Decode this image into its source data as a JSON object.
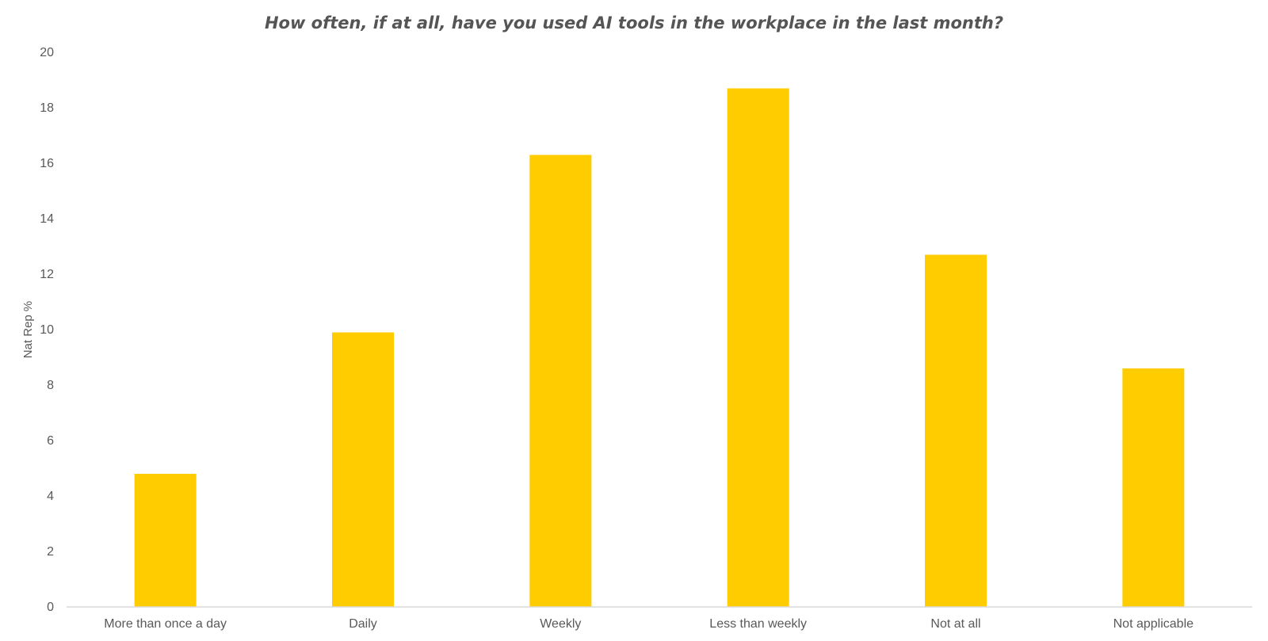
{
  "chart_data": {
    "type": "bar",
    "title": "How often, if at all, have you used AI tools in the workplace in the last month?",
    "xlabel": "",
    "ylabel": "Nat Rep %",
    "categories": [
      "More than once a day",
      "Daily",
      "Weekly",
      "Less than weekly",
      "Not at all",
      "Not applicable"
    ],
    "values": [
      4.8,
      9.9,
      16.3,
      18.7,
      12.7,
      8.6
    ],
    "ylim": [
      0,
      20
    ],
    "yticks": [
      0,
      2,
      4,
      6,
      8,
      10,
      12,
      14,
      16,
      18,
      20
    ],
    "grid": false,
    "legend": "none",
    "colors": {
      "bar": "#FFCC00",
      "axis": "#D9D9D9",
      "text": "#595959"
    }
  }
}
